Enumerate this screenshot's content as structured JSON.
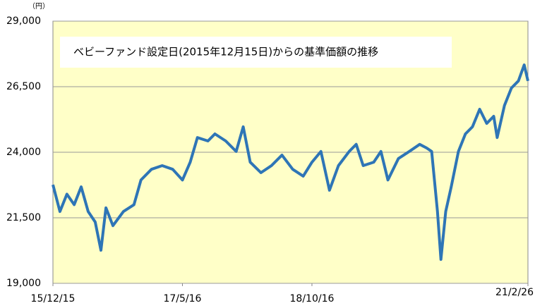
{
  "chart_data": {
    "type": "line",
    "unit_label": "（円）",
    "annotation": "ベビーファンド設定日(2015年12月15日)からの基準価額の推移",
    "x": [
      "15/12/15",
      "16/1/12",
      "16/2/9",
      "16/3/9",
      "16/4/6",
      "16/5/4",
      "16/6/1",
      "16/6/24",
      "16/7/14",
      "16/8/11",
      "16/9/22",
      "16/11/3",
      "16/12/1",
      "17/1/12",
      "17/2/24",
      "17/4/7",
      "17/5/16",
      "17/6/16",
      "17/7/15",
      "17/8/26",
      "17/9/23",
      "17/11/5",
      "17/12/17",
      "18/1/14",
      "18/2/11",
      "18/3/26",
      "18/5/7",
      "18/6/18",
      "18/7/31",
      "18/9/11",
      "18/10/16",
      "18/11/21",
      "18/12/25",
      "19/1/30",
      "19/3/14",
      "19/4/11",
      "19/5/9",
      "19/6/20",
      "19/7/19",
      "19/8/16",
      "19/9/27",
      "19/11/9",
      "19/12/21",
      "20/1/18",
      "20/2/7",
      "20/3/1",
      "20/3/15",
      "20/4/3",
      "20/4/25",
      "20/5/24",
      "20/6/21",
      "20/7/19",
      "20/8/17",
      "20/9/14",
      "20/10/12",
      "20/10/26",
      "20/11/24",
      "20/12/22",
      "21/1/19",
      "21/2/11",
      "21/2/26"
    ],
    "series": [
      {
        "color": "#2e75b6",
        "values": [
          22760,
          21740,
          22400,
          22000,
          22680,
          21740,
          21340,
          20260,
          21880,
          21200,
          21740,
          22000,
          22940,
          23350,
          23490,
          23350,
          22940,
          23620,
          24560,
          24430,
          24700,
          24430,
          24030,
          24970,
          23620,
          23220,
          23490,
          23890,
          23350,
          23090,
          23620,
          24030,
          22550,
          23490,
          24030,
          24300,
          23490,
          23620,
          24030,
          22940,
          23760,
          24030,
          24300,
          24160,
          24030,
          21740,
          19910,
          21740,
          22680,
          24030,
          24700,
          24970,
          25640,
          25100,
          25370,
          24560,
          25780,
          26450,
          26720,
          27330,
          26720
        ]
      }
    ],
    "xlim": [
      "15/12/15",
      "21/2/26"
    ],
    "xticks": [
      "15/12/15",
      "17/5/16",
      "18/10/16",
      "21/2/26"
    ],
    "ylim": [
      19000,
      29000
    ],
    "yticks": [
      {
        "value": 19000,
        "label": "19,000"
      },
      {
        "value": 21500,
        "label": "21,500"
      },
      {
        "value": 24000,
        "label": "24,000"
      },
      {
        "value": 26500,
        "label": "26,500"
      },
      {
        "value": 29000,
        "label": "29,000"
      }
    ],
    "grid": true,
    "background": "#ffffc8"
  }
}
